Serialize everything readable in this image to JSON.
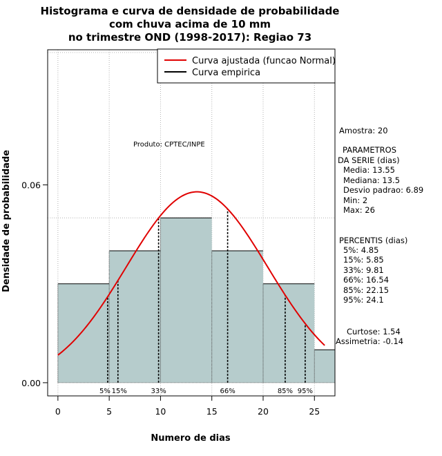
{
  "chart_data": {
    "type": "bar",
    "title_lines": [
      "Histograma e curva de densidade de probabilidade",
      "com chuva acima de 10 mm",
      "no trimestre OND (1998-2017): Regiao 73"
    ],
    "xlabel": "Numero de dias",
    "ylabel": "Densidade de probabilidade",
    "xlim": [
      -1,
      27
    ],
    "ylim": [
      -0.004,
      0.101
    ],
    "x_ticks": [
      0,
      5,
      10,
      15,
      20,
      25
    ],
    "y_ticks": [
      0.0,
      0.06
    ],
    "y_tick_labels": [
      "0.00",
      "0.06"
    ],
    "bins": [
      {
        "from": 0,
        "to": 5,
        "density": 0.03
      },
      {
        "from": 5,
        "to": 10,
        "density": 0.04
      },
      {
        "from": 10,
        "to": 15,
        "density": 0.05
      },
      {
        "from": 15,
        "to": 20,
        "density": 0.04
      },
      {
        "from": 20,
        "to": 25,
        "density": 0.03
      },
      {
        "from": 25,
        "to": 27,
        "density": 0.01
      }
    ],
    "bar_color": "#b6cccc",
    "fitted_curve": {
      "name": "Curva ajustada (funcao Normal)",
      "mean": 13.55,
      "sd": 6.89,
      "x_from": 0,
      "x_to": 26,
      "color": "#e00000"
    },
    "empirical_curve": {
      "name": "Curva empirica",
      "color": "#000000"
    },
    "grid_x": [
      0,
      5,
      10,
      15,
      20,
      25
    ],
    "grid_y": [
      0.05
    ],
    "percentile_lines": [
      {
        "label": "5%",
        "value": 4.85
      },
      {
        "label": "15%",
        "value": 5.85
      },
      {
        "label": "33%",
        "value": 9.81
      },
      {
        "label": "66%",
        "value": 16.54
      },
      {
        "label": "85%",
        "value": 22.15
      },
      {
        "label": "95%",
        "value": 24.1
      }
    ],
    "percentile_tick_labels": [
      {
        "text": "5%",
        "x": 4.85
      },
      {
        "text": "15%",
        "x": 5.85
      },
      {
        "text": "33%",
        "x": 9.81
      },
      {
        "text": "66%",
        "x": 16.54
      },
      {
        "text": "85%",
        "x": 22.15
      },
      {
        "text": "95%",
        "x": 24.1
      }
    ],
    "legend_position": "top-right"
  },
  "annotations": {
    "produto": "Produto: CPTEC/INPE",
    "amostra": "Amostra: 20",
    "param_header_1": "PARAMETROS",
    "param_header_2": "DA SERIE (dias)",
    "params": [
      "Media: 13.55",
      "Mediana: 13.5",
      "Desvio padrao: 6.89",
      "Min: 2",
      "Max: 26"
    ],
    "percentis_header": "PERCENTIS (dias)",
    "percentis": [
      "5%: 4.85",
      "15%: 5.85",
      "33%: 9.81",
      "66%: 16.54",
      "85%: 22.15",
      "95%: 24.1"
    ],
    "curtose": "Curtose: 1.54",
    "assimetria": "Assimetria: -0.14"
  }
}
